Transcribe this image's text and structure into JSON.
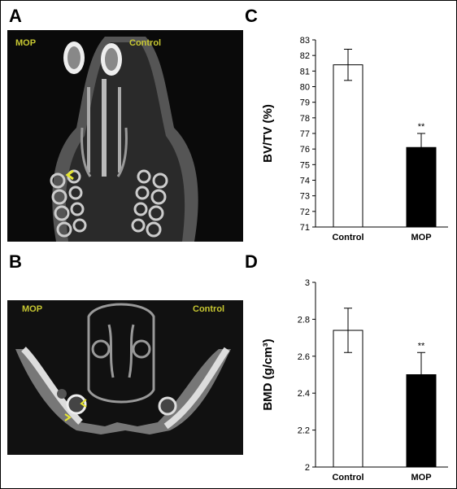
{
  "panels": {
    "a": {
      "letter": "A",
      "left_label": "MOP",
      "right_label": "Control"
    },
    "b": {
      "letter": "B",
      "left_label": "MOP",
      "right_label": "Control"
    },
    "c": {
      "letter": "C"
    },
    "d": {
      "letter": "D"
    }
  },
  "colors": {
    "label": "#c8c832",
    "arrow": "#e6e632",
    "bar_control": "#ffffff",
    "bar_mop": "#000000"
  },
  "chart_data": [
    {
      "id": "C",
      "type": "bar",
      "categories": [
        "Control",
        "MOP"
      ],
      "values": [
        81.4,
        76.1
      ],
      "errors": [
        1.0,
        0.9
      ],
      "annotations": [
        "",
        "**"
      ],
      "ylabel": "BV/TV (%)",
      "xlabel": "",
      "ylim": [
        71,
        83
      ],
      "yticks": [
        71,
        72,
        73,
        74,
        75,
        76,
        77,
        78,
        79,
        80,
        81,
        82,
        83
      ],
      "ytick_labels": [
        "71",
        "72",
        "73",
        "74",
        "75",
        "76",
        "77",
        "78",
        "79",
        "80",
        "81",
        "82",
        "83"
      ],
      "bar_colors": [
        "#ffffff",
        "#000000"
      ]
    },
    {
      "id": "D",
      "type": "bar",
      "categories": [
        "Control",
        "MOP"
      ],
      "values": [
        2.74,
        2.5
      ],
      "errors": [
        0.12,
        0.12
      ],
      "annotations": [
        "",
        "**"
      ],
      "ylabel": "BMD (g/cm³)",
      "xlabel": "",
      "ylim": [
        2,
        3
      ],
      "yticks": [
        2,
        2.2,
        2.4,
        2.6,
        2.8,
        3
      ],
      "ytick_labels": [
        "2",
        "2.2",
        "2.4",
        "2.6",
        "2.8",
        "3"
      ],
      "bar_colors": [
        "#ffffff",
        "#000000"
      ]
    }
  ]
}
